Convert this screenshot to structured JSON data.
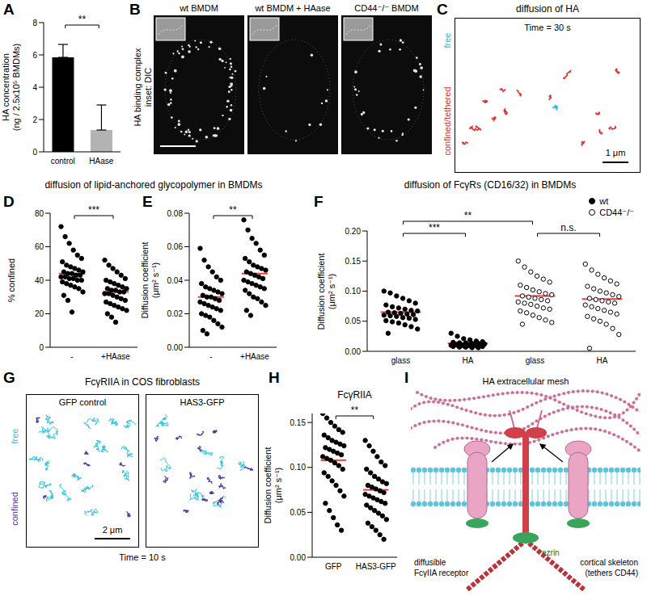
{
  "section_titles": [
    "diffusion of lipid-anchored glycopolymer in BMDMs",
    "diffusion of FcγRs (CD16/32) in BMDMs"
  ],
  "chart_data": [
    {
      "panel": "A",
      "type": "bar",
      "categories": [
        "control",
        "HAase"
      ],
      "values": [
        5.85,
        1.35
      ],
      "error": [
        0.8,
        1.55
      ],
      "colors": [
        "#000000",
        "#b3b3b3"
      ],
      "ylabel": [
        "HA concentration",
        "(ng / 2.5x10⁵ BMDMs)"
      ],
      "ylim": [
        0,
        8
      ],
      "yticks": [
        0,
        2,
        4,
        6,
        8
      ],
      "significance": [
        {
          "from": 0,
          "to": 1,
          "label": "**"
        }
      ]
    },
    {
      "panel": "D",
      "type": "scatter",
      "categories": [
        "-",
        "+HAase"
      ],
      "ylabel": [
        "% confined"
      ],
      "ylim": [
        0,
        80
      ],
      "yticks": [
        0,
        20,
        40,
        60,
        80
      ],
      "color": "#000000",
      "marker": "filled",
      "groups": [
        {
          "values": [
            72,
            66,
            62,
            58,
            55,
            53,
            51,
            49,
            48,
            47,
            46,
            45,
            45,
            44,
            44,
            43,
            43,
            42,
            42,
            41,
            41,
            40,
            40,
            39,
            38,
            37,
            36,
            35,
            33,
            31,
            28,
            21
          ],
          "mean": 44
        },
        {
          "values": [
            52,
            49,
            47,
            45,
            43,
            41,
            40,
            39,
            38,
            37,
            36,
            35,
            35,
            34,
            34,
            33,
            33,
            32,
            32,
            31,
            30,
            29,
            28,
            27,
            26,
            25,
            24,
            23,
            22,
            20,
            18,
            15
          ],
          "mean": 33
        }
      ],
      "significance": [
        {
          "from": 0,
          "to": 1,
          "label": "***"
        }
      ]
    },
    {
      "panel": "E",
      "type": "scatter",
      "categories": [
        "-",
        "+HAase"
      ],
      "ylabel": [
        "Diffusion coefficient",
        "(μm² s⁻¹)"
      ],
      "ylim": [
        0,
        0.08
      ],
      "yticks": [
        {
          "value": 0,
          "label": "0.00"
        },
        0.02,
        0.04,
        0.06,
        0.08
      ],
      "color": "#000000",
      "marker": "filled",
      "groups": [
        {
          "values": [
            0.059,
            0.052,
            0.048,
            0.045,
            0.042,
            0.04,
            0.038,
            0.036,
            0.035,
            0.034,
            0.033,
            0.032,
            0.031,
            0.03,
            0.03,
            0.029,
            0.028,
            0.027,
            0.026,
            0.025,
            0.024,
            0.023,
            0.022,
            0.02,
            0.019,
            0.018,
            0.016,
            0.014,
            0.012,
            0.01,
            0.008
          ],
          "mean": 0.03
        },
        {
          "values": [
            0.076,
            0.07,
            0.065,
            0.062,
            0.058,
            0.055,
            0.053,
            0.051,
            0.049,
            0.048,
            0.047,
            0.046,
            0.045,
            0.044,
            0.043,
            0.042,
            0.041,
            0.04,
            0.039,
            0.038,
            0.037,
            0.036,
            0.035,
            0.034,
            0.032,
            0.03,
            0.029,
            0.027,
            0.025,
            0.022,
            0.019
          ],
          "mean": 0.044
        }
      ],
      "significance": [
        {
          "from": 0,
          "to": 1,
          "label": "**"
        }
      ]
    },
    {
      "panel": "F",
      "type": "scatter",
      "categories": [
        "glass",
        "HA",
        "glass",
        "HA"
      ],
      "ylabel": [
        "Diffusion coefficient",
        "(μm² s⁻¹)"
      ],
      "ylim": [
        0,
        0.2
      ],
      "yticks": [
        {
          "value": 0,
          "label": "0.00"
        },
        0.05,
        {
          "value": 0.1,
          "label": "0.10"
        },
        0.15,
        {
          "value": 0.2,
          "label": "0.20"
        }
      ],
      "legend": "upper right",
      "series": [
        {
          "name": "wt",
          "color": "#000000",
          "marker": "filled"
        },
        {
          "name": "CD44⁻/⁻",
          "color": "#000000",
          "marker": "open"
        }
      ],
      "groups": [
        {
          "series": "wt",
          "values": [
            0.1,
            0.097,
            0.092,
            0.088,
            0.084,
            0.08,
            0.077,
            0.074,
            0.072,
            0.07,
            0.068,
            0.067,
            0.065,
            0.064,
            0.063,
            0.062,
            0.061,
            0.06,
            0.059,
            0.058,
            0.056,
            0.055,
            0.053,
            0.051,
            0.049,
            0.047,
            0.044,
            0.041,
            0.037,
            0.03
          ],
          "mean": 0.065
        },
        {
          "series": "wt",
          "values": [
            0.03,
            0.025,
            0.021,
            0.019,
            0.017,
            0.016,
            0.015,
            0.014,
            0.014,
            0.013,
            0.013,
            0.012,
            0.012,
            0.011,
            0.011,
            0.011,
            0.01,
            0.01,
            0.01,
            0.009,
            0.009,
            0.009,
            0.008,
            0.008,
            0.007,
            0.007,
            0.006,
            0.006
          ],
          "mean": 0.013
        },
        {
          "series": "CD44⁻/⁻",
          "values": [
            0.15,
            0.14,
            0.132,
            0.125,
            0.12,
            0.115,
            0.11,
            0.106,
            0.102,
            0.099,
            0.096,
            0.094,
            0.092,
            0.09,
            0.088,
            0.086,
            0.084,
            0.082,
            0.08,
            0.078,
            0.075,
            0.072,
            0.07,
            0.067,
            0.064,
            0.06,
            0.056,
            0.052,
            0.048,
            0.045
          ],
          "mean": 0.092
        },
        {
          "series": "CD44⁻/⁻",
          "values": [
            0.145,
            0.135,
            0.128,
            0.122,
            0.117,
            0.112,
            0.108,
            0.104,
            0.1,
            0.097,
            0.094,
            0.091,
            0.088,
            0.086,
            0.084,
            0.082,
            0.08,
            0.077,
            0.074,
            0.071,
            0.068,
            0.065,
            0.062,
            0.058,
            0.054,
            0.05,
            0.045,
            0.038,
            0.028,
            0.005
          ],
          "mean": 0.087
        }
      ],
      "significance": [
        {
          "from": 0,
          "to": 2,
          "label": "**"
        },
        {
          "from": 0,
          "to": 1,
          "label": "***"
        },
        {
          "from": 2,
          "to": 3,
          "label": "n.s."
        }
      ]
    },
    {
      "panel": "H",
      "type": "scatter",
      "title": "FcγRIIA",
      "categories": [
        "GFP",
        "HAS3-GFP"
      ],
      "ylabel": [
        "Diffusion coefficient",
        "(μm² s⁻¹)"
      ],
      "ylim": [
        0,
        0.16
      ],
      "yticks": [
        {
          "value": 0,
          "label": "0.00"
        },
        0.05,
        {
          "value": 0.1,
          "label": "0.10"
        },
        0.15
      ],
      "color": "#000000",
      "marker": "filled",
      "groups": [
        {
          "values": [
            0.16,
            0.155,
            0.15,
            0.146,
            0.142,
            0.139,
            0.136,
            0.133,
            0.13,
            0.128,
            0.126,
            0.124,
            0.122,
            0.12,
            0.118,
            0.116,
            0.114,
            0.112,
            0.11,
            0.108,
            0.105,
            0.102,
            0.098,
            0.094,
            0.09,
            0.085,
            0.08,
            0.074,
            0.068,
            0.06,
            0.052,
            0.044,
            0.036,
            0.03
          ],
          "mean": 0.108
        },
        {
          "values": [
            0.13,
            0.124,
            0.118,
            0.112,
            0.106,
            0.102,
            0.098,
            0.094,
            0.09,
            0.087,
            0.084,
            0.082,
            0.08,
            0.078,
            0.076,
            0.074,
            0.072,
            0.07,
            0.068,
            0.066,
            0.064,
            0.062,
            0.06,
            0.058,
            0.055,
            0.052,
            0.049,
            0.046,
            0.042,
            0.038,
            0.034,
            0.03,
            0.025,
            0.02
          ],
          "mean": 0.075
        }
      ],
      "significance": [
        {
          "from": 0,
          "to": 1,
          "label": "**"
        }
      ]
    }
  ],
  "images": {
    "B": {
      "panel": "B",
      "side_label": [
        "HA binding complex",
        "inset: DIC"
      ],
      "titles": [
        "wt BMDM",
        "wt BMDM + HAase",
        "CD44⁻/⁻ BMDM"
      ]
    },
    "C": {
      "panel": "C",
      "title": "diffusion of HA",
      "time": "Time = 30 s",
      "labels": [
        {
          "text": "free",
          "color": "#29b6d8"
        },
        {
          "text": "confined/tethered",
          "color": "#e0302a"
        }
      ],
      "scale": "1 μm"
    },
    "G": {
      "panel": "G",
      "title": "FcγRIIA in COS fibroblasts",
      "titles": [
        "GFP control",
        "HAS3-GFP"
      ],
      "labels": [
        {
          "text": "free",
          "color": "#29c3e0"
        },
        {
          "text": "confined",
          "color": "#4a3aa0"
        }
      ],
      "scale": "2 μm",
      "time": "Time = 10 s"
    }
  },
  "diagram": {
    "panel": "I",
    "mesh": "HA extracellular mesh",
    "ezrin": "ezrin",
    "receptor": [
      "diffusible",
      "FcγIIA receptor"
    ],
    "skeleton": [
      "cortical skeleton",
      "(tethers CD44)"
    ]
  }
}
